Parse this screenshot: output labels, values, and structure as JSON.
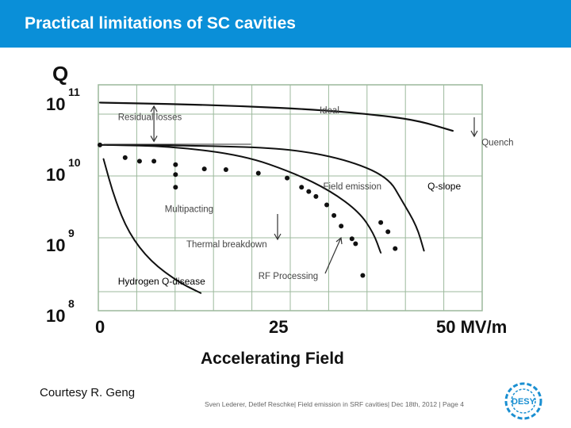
{
  "header": {
    "title": "Practical limitations of SC cavities"
  },
  "credit": "Courtesy R. Geng",
  "footer": {
    "text": "Sven Lederer, Detlef Reschke| Field emission in SRF cavities| Dec 18th, 2012 | Page 4",
    "logo_label": "DESY"
  },
  "colors": {
    "header_bg": "#0a8fd8",
    "grid": "#9cb99c",
    "curve": "#111111",
    "logo": "#1a8fd1"
  },
  "chart_data": {
    "type": "line",
    "title": "",
    "ylabel": "Q",
    "xlabel": "Accelerating Field",
    "xlim": [
      0,
      50
    ],
    "ylim": [
      8,
      11
    ],
    "y_scale": "log",
    "grid": true,
    "x_ticks": [
      {
        "value": 0,
        "label": "0"
      },
      {
        "value": 25,
        "label": "25"
      },
      {
        "value": 50,
        "label": "50 MV/m"
      }
    ],
    "y_ticks": [
      {
        "value": 8,
        "base": "10",
        "exp": "8"
      },
      {
        "value": 9,
        "base": "10",
        "exp": "9"
      },
      {
        "value": 10,
        "base": "10",
        "exp": "10"
      },
      {
        "value": 11,
        "base": "10",
        "exp": "11"
      }
    ],
    "series": [
      {
        "key": "ideal",
        "points": [
          [
            0,
            10.95
          ],
          [
            10,
            10.93
          ],
          [
            20,
            10.9
          ],
          [
            30,
            10.85
          ],
          [
            38,
            10.78
          ],
          [
            44,
            10.7
          ],
          [
            49,
            10.55
          ]
        ]
      },
      {
        "key": "field_emission",
        "points": [
          [
            1,
            10.35
          ],
          [
            10,
            10.33
          ],
          [
            20,
            10.2
          ],
          [
            27,
            9.95
          ],
          [
            32,
            9.7
          ],
          [
            36,
            9.4
          ],
          [
            38,
            9.1
          ],
          [
            39,
            8.82
          ]
        ]
      },
      {
        "key": "q_slope",
        "points": [
          [
            0,
            10.35
          ],
          [
            14,
            10.34
          ],
          [
            26,
            10.3
          ],
          [
            34,
            10.15
          ],
          [
            40,
            9.9
          ],
          [
            42,
            9.55
          ],
          [
            44,
            9.2
          ],
          [
            45,
            8.85
          ]
        ]
      },
      {
        "key": "hydrogen",
        "points": [
          [
            0.5,
            10.15
          ],
          [
            2,
            9.6
          ],
          [
            4,
            9.1
          ],
          [
            7,
            8.7
          ],
          [
            11,
            8.4
          ],
          [
            14,
            8.25
          ]
        ]
      }
    ],
    "multipacting_points": [
      [
        0,
        10.35
      ],
      [
        3.5,
        10.17
      ],
      [
        5.5,
        10.12
      ],
      [
        7.5,
        10.12
      ],
      [
        10.5,
        10.07
      ],
      [
        10.5,
        9.93
      ],
      [
        10.5,
        9.75
      ],
      [
        14.5,
        10.01
      ],
      [
        17.5,
        10.0
      ],
      [
        22,
        9.95
      ],
      [
        26,
        9.88
      ],
      [
        28,
        9.75
      ],
      [
        29,
        9.69
      ],
      [
        30,
        9.62
      ],
      [
        31.5,
        9.5
      ],
      [
        32.5,
        9.35
      ],
      [
        33.5,
        9.2
      ],
      [
        35,
        9.02
      ],
      [
        35.5,
        8.95
      ],
      [
        36.5,
        8.5
      ],
      [
        39,
        9.25
      ],
      [
        40,
        9.12
      ],
      [
        41,
        8.88
      ]
    ],
    "annotations": [
      {
        "key": "ideal",
        "text": "Ideal",
        "x": 30.5,
        "y": 10.8
      },
      {
        "key": "residual",
        "text": "Residual losses",
        "x": 2.5,
        "y": 10.7
      },
      {
        "key": "quench",
        "text": "Quench",
        "x": 53,
        "y": 10.34
      },
      {
        "key": "field_emission",
        "text": "Field emission",
        "x": 31,
        "y": 9.72
      },
      {
        "key": "q_slope",
        "text": "Q-slope",
        "x": 45.5,
        "y": 9.72
      },
      {
        "key": "multipacting",
        "text": "Multipacting",
        "x": 9,
        "y": 9.4
      },
      {
        "key": "thermal",
        "text": "Thermal breakdown",
        "x": 12,
        "y": 8.9
      },
      {
        "key": "rf_processing",
        "text": "RF Processing",
        "x": 22,
        "y": 8.45
      },
      {
        "key": "hydrogen",
        "text": "Hydrogen Q-disease",
        "x": 2.5,
        "y": 8.37
      }
    ]
  }
}
